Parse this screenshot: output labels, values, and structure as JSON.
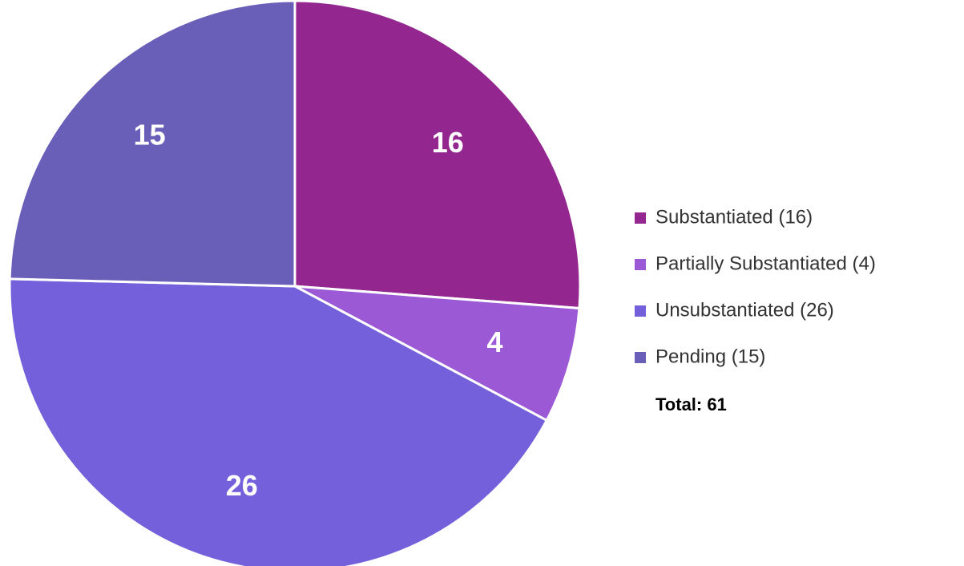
{
  "chart_data": {
    "type": "pie",
    "categories": [
      "Substantiated (16)",
      "Partially Substantiated (4)",
      "Unsubstantiated (26)",
      "Pending (15)"
    ],
    "values": [
      16,
      4,
      26,
      15
    ],
    "colors": [
      "#93278f",
      "#9b59d6",
      "#7560dc",
      "#6a5fb8"
    ],
    "total_label": "Total: 61",
    "legend": "right"
  }
}
